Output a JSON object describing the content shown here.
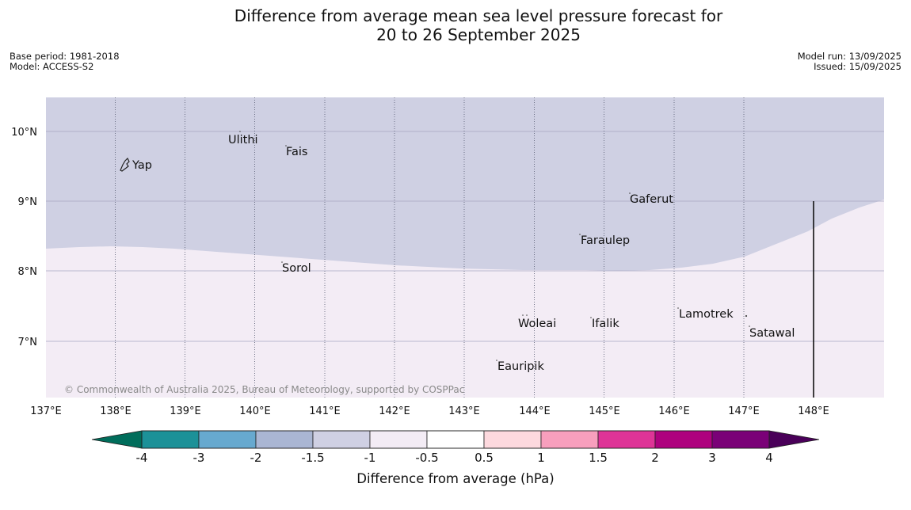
{
  "title_line1": "Difference from average mean sea level pressure forecast for",
  "title_line2": "20 to 26 September 2025",
  "base_period": "Base period: 1981-2018",
  "model": "Model: ACCESS-S2",
  "model_run": "Model run: 13/09/2025",
  "issued": "Issued: 15/09/2025",
  "copyright": "© Commonwealth of Australia 2025, Bureau of Meteorology, supported by COSPPac",
  "map": {
    "lon_range": [
      137,
      149
    ],
    "lat_range": [
      6.2,
      10.5
    ],
    "lon_ticks": [
      "137°E",
      "138°E",
      "139°E",
      "140°E",
      "141°E",
      "142°E",
      "143°E",
      "144°E",
      "145°E",
      "146°E",
      "147°E",
      "148°E"
    ],
    "lat_ticks": [
      "10°N",
      "9°N",
      "8°N",
      "7°N"
    ],
    "anomaly_regions": [
      {
        "class": "-1.5 to -1 hPa",
        "color": "#cfd0e3",
        "position": "north"
      },
      {
        "class": "-1 to -0.5 hPa",
        "color": "#f3ecf5",
        "position": "south"
      }
    ],
    "places": [
      {
        "name": "Yap",
        "lon": 138.2,
        "lat": 9.5
      },
      {
        "name": "Ulithi",
        "lon": 139.65,
        "lat": 9.88
      },
      {
        "name": "Fais",
        "lon": 140.45,
        "lat": 9.7
      },
      {
        "name": "Gaferut",
        "lon": 145.35,
        "lat": 9.0
      },
      {
        "name": "Faraulep",
        "lon": 144.6,
        "lat": 8.42
      },
      {
        "name": "Sorol",
        "lon": 140.38,
        "lat": 8.02
      },
      {
        "name": "Woleai",
        "lon": 143.8,
        "lat": 7.26
      },
      {
        "name": "Ifalik",
        "lon": 144.8,
        "lat": 7.26
      },
      {
        "name": "Lamotrek",
        "lon": 146.07,
        "lat": 7.39
      },
      {
        "name": "Satawal",
        "lon": 147.08,
        "lat": 7.12
      },
      {
        "name": "Eauripik",
        "lon": 143.47,
        "lat": 6.6
      }
    ]
  },
  "colorbar": {
    "title": "Difference from average (hPa)",
    "tick_labels": [
      "-4",
      "-3",
      "-2",
      "-1.5",
      "-1",
      "-0.5",
      "0.5",
      "1",
      "1.5",
      "2",
      "3",
      "4"
    ],
    "under_color": "#006d5b",
    "over_color": "#4a0059",
    "colors": [
      "#1c9198",
      "#67a9cf",
      "#aab6d3",
      "#cfd0e3",
      "#f3ecf5",
      "#ffffff",
      "#fdd9de",
      "#f89fbd",
      "#de3497",
      "#ae017e",
      "#7a0177"
    ]
  }
}
